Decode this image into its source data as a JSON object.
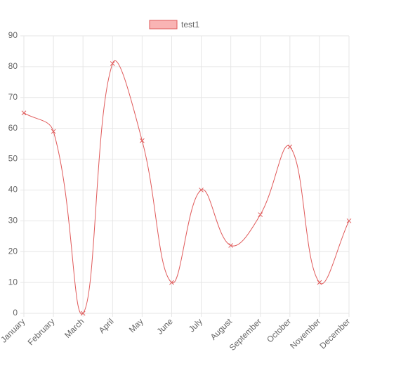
{
  "chart_data": {
    "type": "line",
    "categories": [
      "January",
      "February",
      "March",
      "April",
      "May",
      "June",
      "July",
      "August",
      "September",
      "October",
      "November",
      "December"
    ],
    "series": [
      {
        "name": "test1",
        "color": "#e05a5a",
        "fill": "#f9b4b4",
        "values": [
          65,
          59,
          0,
          81,
          56,
          10,
          40,
          22,
          32,
          54,
          10,
          30
        ]
      }
    ],
    "ylim": [
      0,
      90
    ],
    "yticks": [
      0,
      10,
      20,
      30,
      40,
      50,
      60,
      70,
      80,
      90
    ],
    "grid": true,
    "legend": "top",
    "smooth": true
  }
}
